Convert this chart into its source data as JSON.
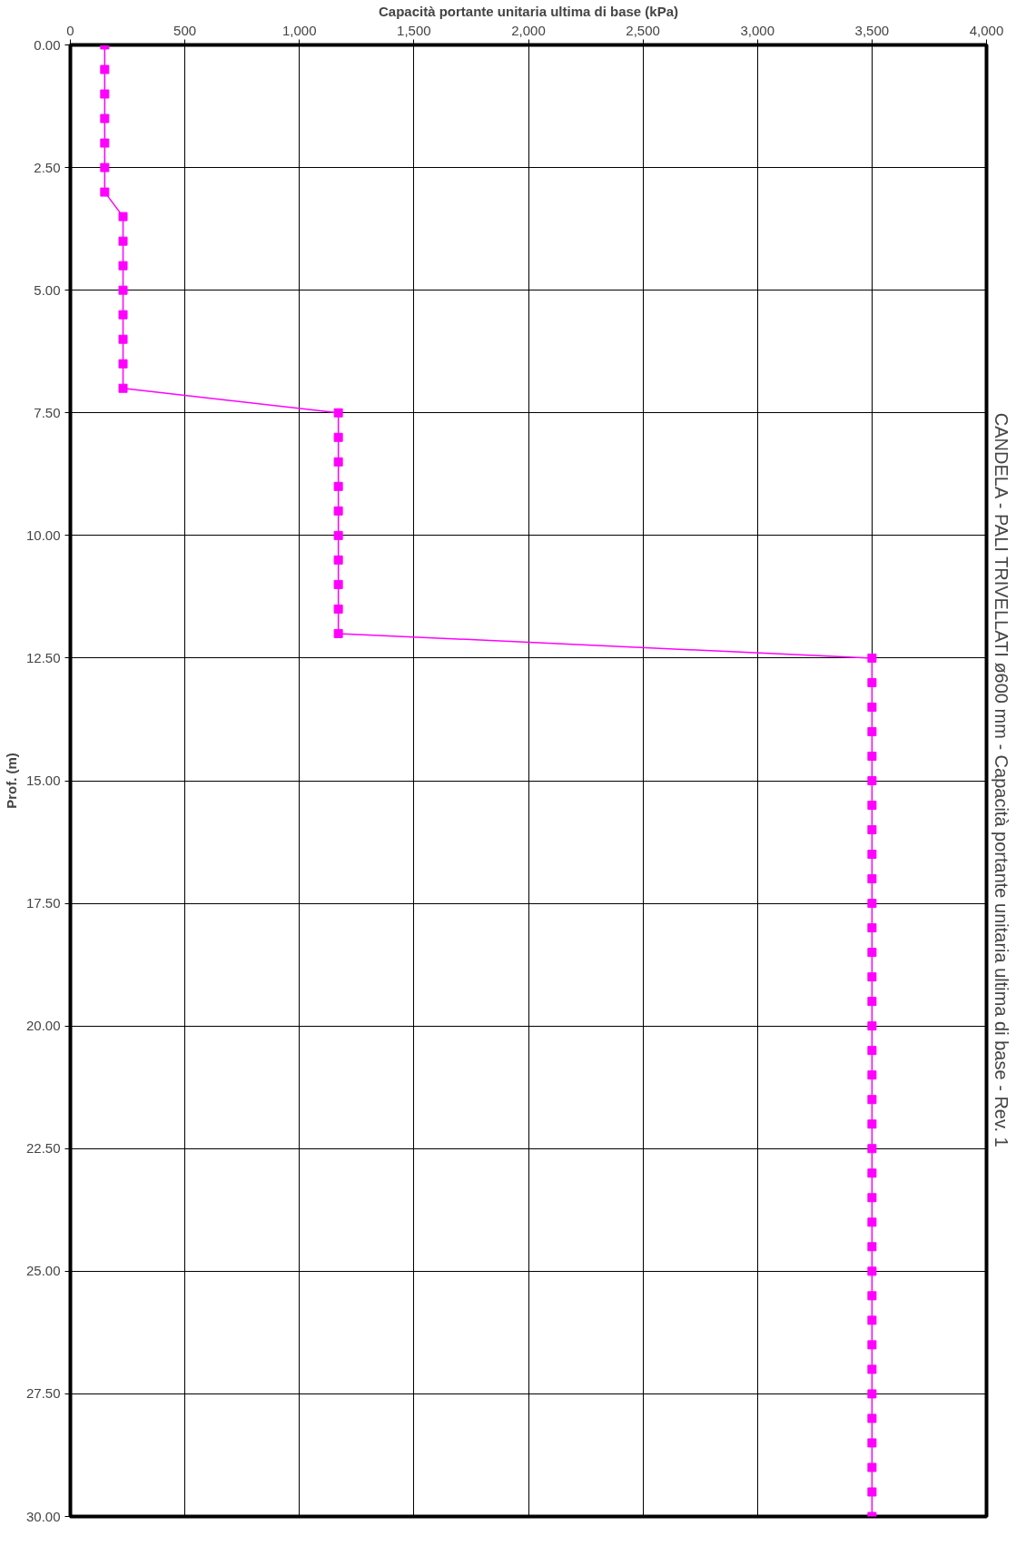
{
  "chart_data": {
    "type": "line",
    "title": "CANDELA - PALI TRIVELLATI ø600 mm - Capacità portante unitaria ultima di base - Rev. 1",
    "xlabel": "Capacità portante unitaria ultima di base (kPa)",
    "ylabel": "Prof. (m)",
    "series": [
      {
        "color": "#ff00ff",
        "x": [
          150,
          150,
          150,
          150,
          150,
          150,
          150,
          230,
          230,
          230,
          230,
          230,
          230,
          230,
          230,
          1170,
          1170,
          1170,
          1170,
          1170,
          1170,
          1170,
          1170,
          1170,
          1170,
          3500,
          3500,
          3500,
          3500,
          3500,
          3500,
          3500,
          3500,
          3500,
          3500,
          3500,
          3500,
          3500,
          3500,
          3500,
          3500,
          3500,
          3500,
          3500,
          3500,
          3500,
          3500,
          3500,
          3500,
          3500,
          3500,
          3500,
          3500,
          3500,
          3500,
          3500,
          3500,
          3500,
          3500,
          3500,
          3500
        ],
        "values": [
          0,
          0.5,
          1,
          1.5,
          2,
          2.5,
          3,
          3.5,
          4,
          4.5,
          5,
          5.5,
          6,
          6.5,
          7,
          7.5,
          8,
          8.5,
          9,
          9.5,
          10,
          10.5,
          11,
          11.5,
          12,
          12.5,
          13,
          13.5,
          14,
          14.5,
          15,
          15.5,
          16,
          16.5,
          17,
          17.5,
          18,
          18.5,
          19,
          19.5,
          20,
          20.5,
          21,
          21.5,
          22,
          22.5,
          23,
          23.5,
          24,
          24.5,
          25,
          25.5,
          26,
          26.5,
          27,
          27.5,
          28,
          28.5,
          29,
          29.5,
          30
        ]
      }
    ],
    "xlim": [
      0,
      4000
    ],
    "xticks": [
      0,
      500,
      {
        "value": 1000,
        "label": "1,000"
      },
      {
        "value": 1500,
        "label": "1,500"
      },
      {
        "value": 2000,
        "label": "2,000"
      },
      {
        "value": 2500,
        "label": "2,500"
      },
      {
        "value": 3000,
        "label": "3,000"
      },
      {
        "value": 3500,
        "label": "3,500"
      },
      {
        "value": 4000,
        "label": "4,000"
      }
    ],
    "ylim": [
      30,
      0
    ],
    "yticks": [
      {
        "value": 0,
        "label": "0.00"
      },
      {
        "value": 2.5,
        "label": "2.50"
      },
      {
        "value": 5,
        "label": "5.00"
      },
      {
        "value": 7.5,
        "label": "7.50"
      },
      {
        "value": 10,
        "label": "10.00"
      },
      {
        "value": 12.5,
        "label": "12.50"
      },
      {
        "value": 15,
        "label": "15.00"
      },
      {
        "value": 17.5,
        "label": "17.50"
      },
      {
        "value": 20,
        "label": "20.00"
      },
      {
        "value": 22.5,
        "label": "22.50"
      },
      {
        "value": 25,
        "label": "25.00"
      },
      {
        "value": 27.5,
        "label": "27.50"
      },
      {
        "value": 30,
        "label": "30.00"
      }
    ],
    "grid": true,
    "marker": "square",
    "line_style": "solid"
  }
}
